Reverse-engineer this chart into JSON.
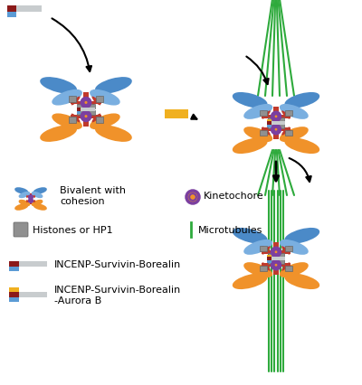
{
  "background_color": "#ffffff",
  "figure_width": 4.0,
  "figure_height": 4.27,
  "dpi": 100,
  "legend": {
    "bivalent_text": "Bivalent with\ncohesion",
    "kinetochore_text": "Kinetochore",
    "histones_text": "Histones or HP1",
    "microtubules_text": "Microtubules",
    "incenp1_text": "INCENP-Survivin-Borealin",
    "incenp2_text": "INCENP-Survivin-Borealin\n-Aurora B"
  },
  "colors": {
    "blue_chrom": "#4B8AC8",
    "blue_chrom_light": "#7AAFE0",
    "orange_chrom": "#F0922A",
    "red_cohesin": "#C0392B",
    "gray_histone": "#909090",
    "purple_kinet": "#7B3FA0",
    "green_mt": "#2EAA3C",
    "dark_red": "#8B1A1A",
    "yellow_aurora": "#F0B020",
    "white_incenp": "#C8CCCE",
    "light_blue_bor": "#5B9BD5",
    "black": "#000000",
    "white": "#ffffff"
  }
}
